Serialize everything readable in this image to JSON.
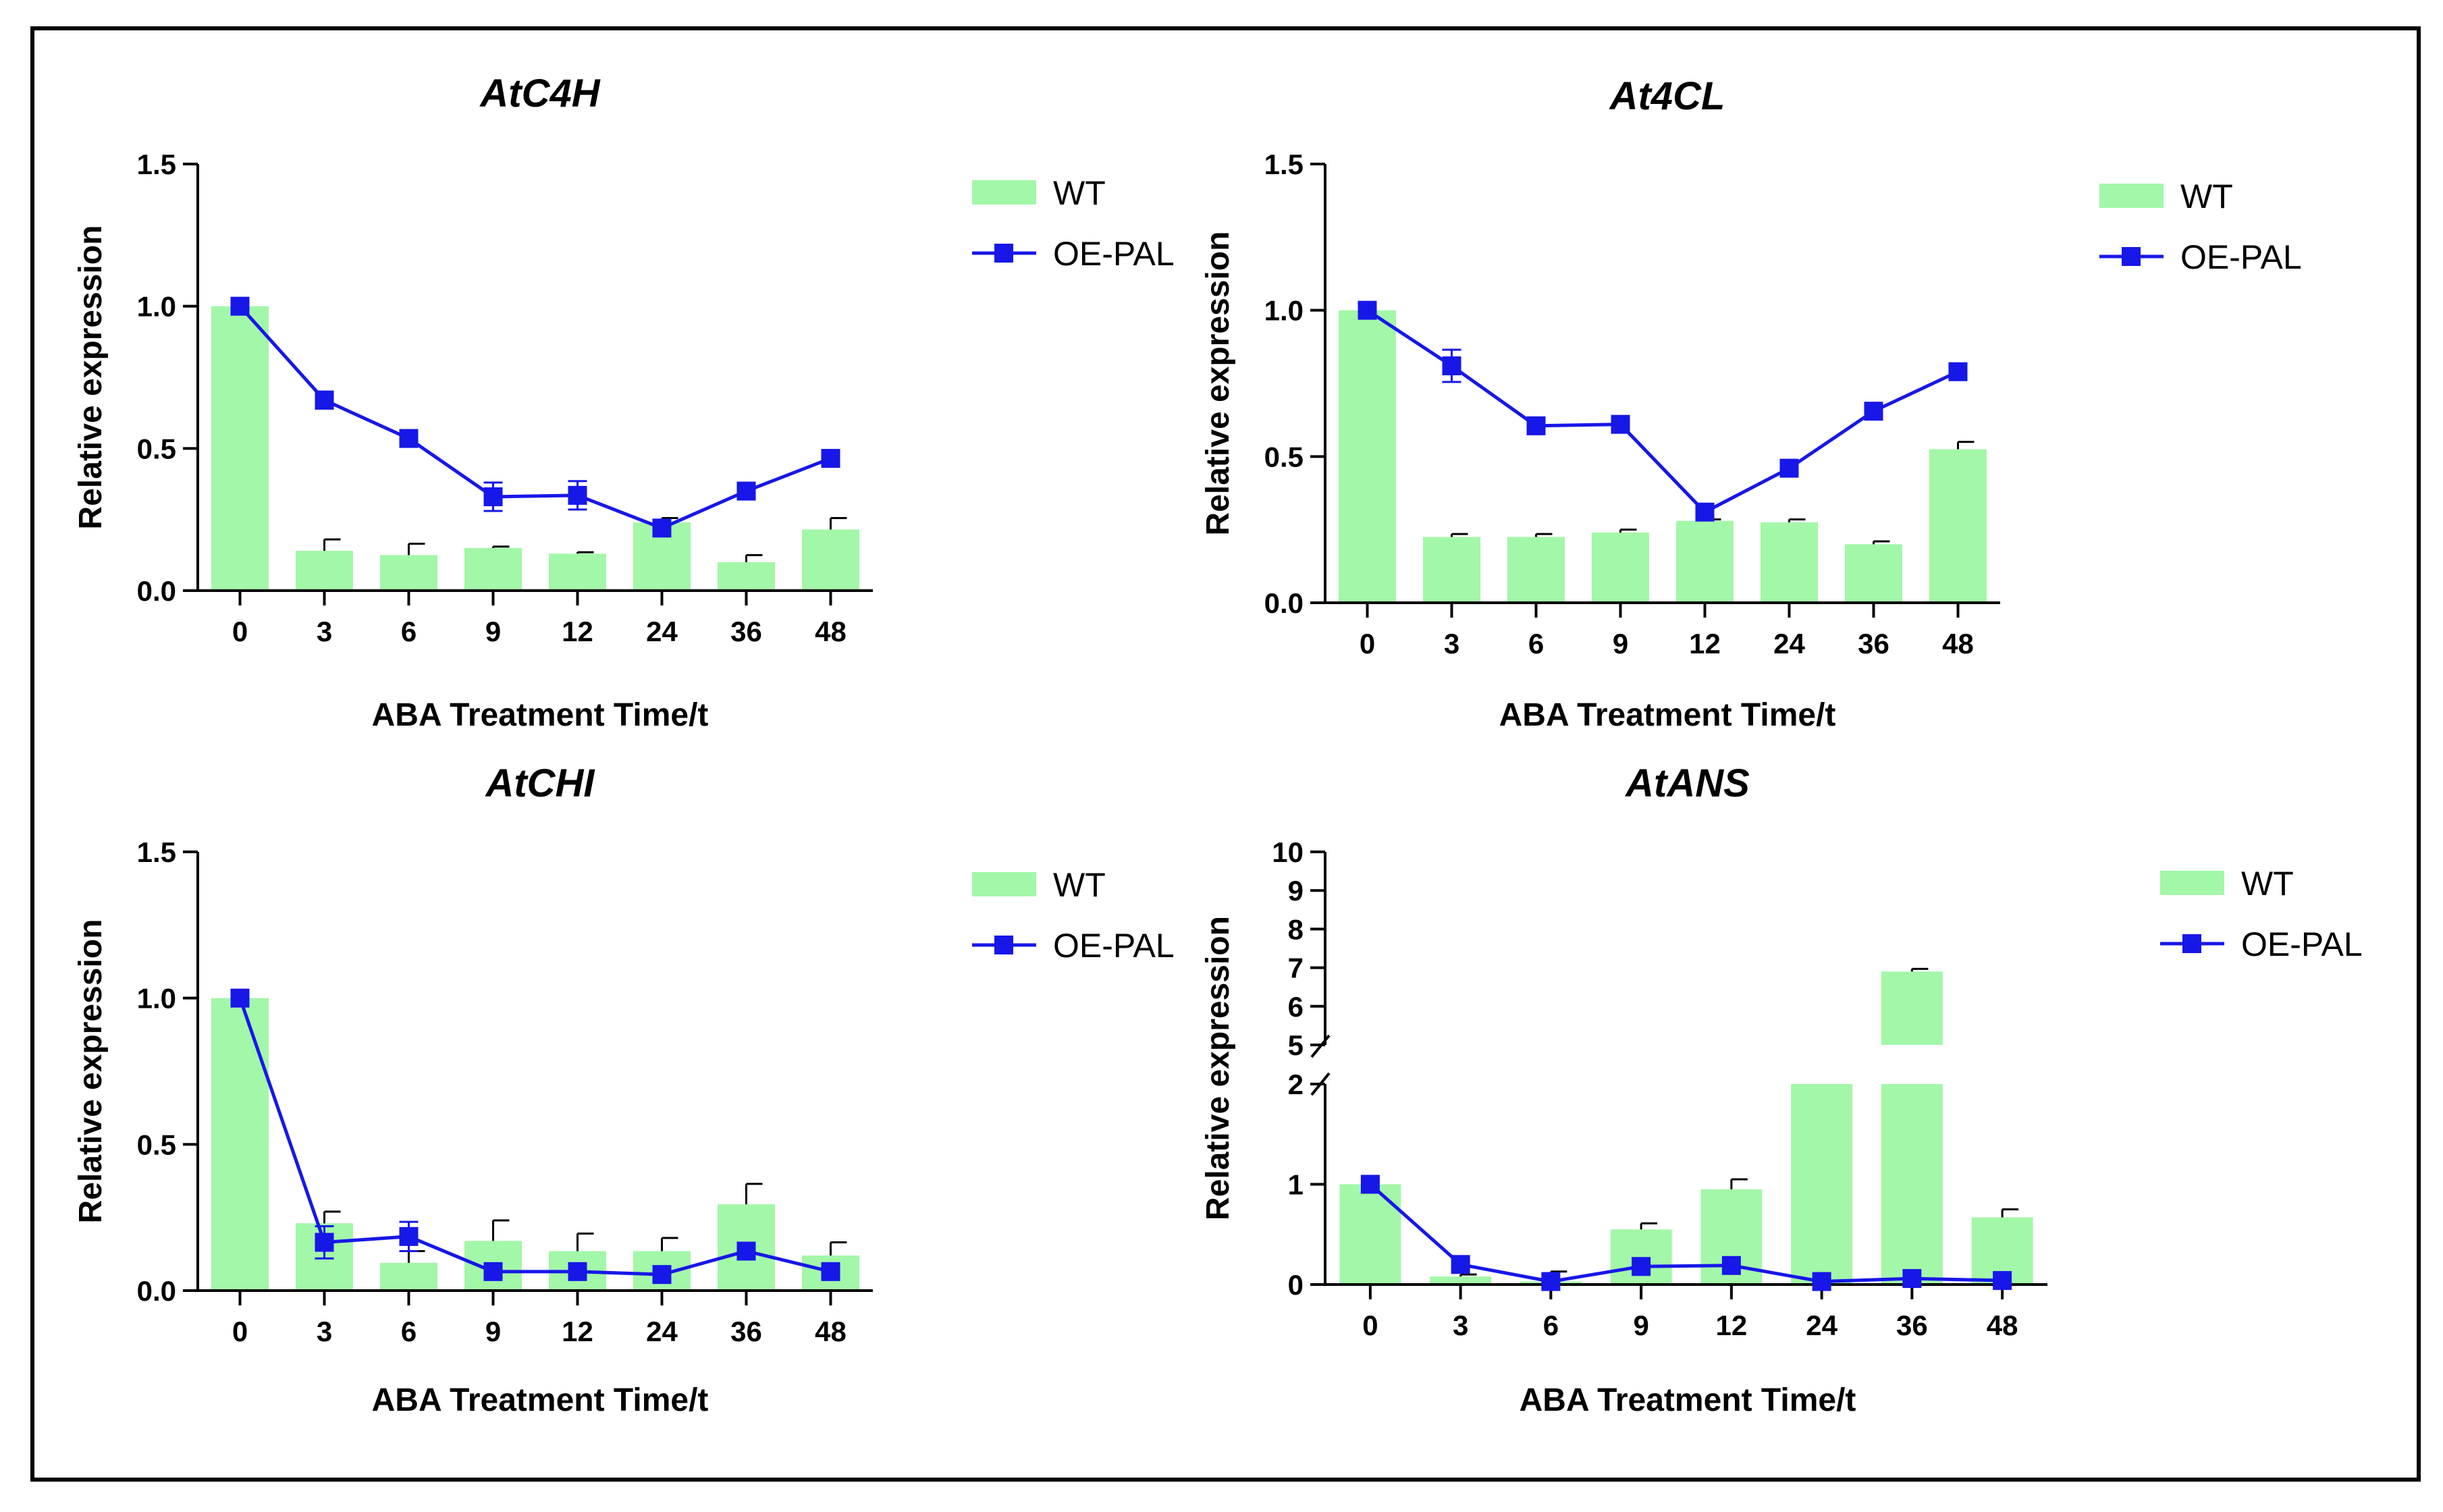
{
  "colors": {
    "wt_bar": "#a3f7a8",
    "oe_line": "#1717e8",
    "axis": "#000000",
    "frame": "#000000"
  },
  "legend": {
    "wt": "WT",
    "oe": "OE-PAL"
  },
  "chart_data": [
    {
      "type": "bar",
      "title": "AtC4H",
      "xlabel": "ABA Treatment Time/t",
      "ylabel": "Relative expression",
      "categories": [
        "0",
        "3",
        "6",
        "9",
        "12",
        "24",
        "36",
        "48"
      ],
      "ylim": [
        0,
        1.5
      ],
      "yticks": [
        "0.0",
        "0.5",
        "1.0",
        "1.5"
      ],
      "legend_position": "top-right",
      "series": [
        {
          "name": "WT",
          "kind": "bar",
          "values": [
            1.0,
            0.14,
            0.125,
            0.15,
            0.13,
            0.24,
            0.1,
            0.215
          ],
          "errors": [
            0,
            0.04,
            0.04,
            0.005,
            0.005,
            0.015,
            0.025,
            0.04
          ]
        },
        {
          "name": "OE-PAL",
          "kind": "line",
          "values": [
            1.0,
            0.67,
            0.535,
            0.33,
            0.335,
            0.22,
            0.35,
            0.465
          ],
          "errors": [
            0.01,
            0.03,
            0.01,
            0.05,
            0.05,
            0.02,
            0.01,
            0.01
          ]
        }
      ]
    },
    {
      "type": "bar",
      "title": "At4CL",
      "xlabel": "ABA Treatment Time/t",
      "ylabel": "Relative expression",
      "categories": [
        "0",
        "3",
        "6",
        "9",
        "12",
        "24",
        "36",
        "48"
      ],
      "ylim": [
        0,
        1.5
      ],
      "yticks": [
        "0.0",
        "0.5",
        "1.0",
        "1.5"
      ],
      "legend_position": "top-right",
      "series": [
        {
          "name": "WT",
          "kind": "bar",
          "values": [
            1.0,
            0.225,
            0.225,
            0.24,
            0.28,
            0.275,
            0.2,
            0.525
          ],
          "errors": [
            0,
            0.01,
            0.01,
            0.01,
            0.005,
            0.01,
            0.01,
            0.025
          ]
        },
        {
          "name": "OE-PAL",
          "kind": "line",
          "values": [
            1.0,
            0.81,
            0.605,
            0.61,
            0.31,
            0.46,
            0.655,
            0.79
          ],
          "errors": [
            0.01,
            0.055,
            0.01,
            0.01,
            0.01,
            0.01,
            0.01,
            0.01
          ]
        }
      ]
    },
    {
      "type": "bar",
      "title": "AtCHI",
      "xlabel": "ABA Treatment Time/t",
      "ylabel": "Relative expression",
      "categories": [
        "0",
        "3",
        "6",
        "9",
        "12",
        "24",
        "36",
        "48"
      ],
      "ylim": [
        0,
        1.5
      ],
      "yticks": [
        "0.0",
        "0.5",
        "1.0",
        "1.5"
      ],
      "legend_position": "top-right",
      "series": [
        {
          "name": "WT",
          "kind": "bar",
          "values": [
            1.0,
            0.23,
            0.095,
            0.17,
            0.135,
            0.135,
            0.295,
            0.12
          ],
          "errors": [
            0,
            0.04,
            0.04,
            0.07,
            0.06,
            0.045,
            0.07,
            0.045
          ]
        },
        {
          "name": "OE-PAL",
          "kind": "line",
          "values": [
            1.0,
            0.165,
            0.185,
            0.065,
            0.065,
            0.055,
            0.135,
            0.065
          ],
          "errors": [
            0.01,
            0.055,
            0.05,
            0.01,
            0.01,
            0.01,
            0.01,
            0.01
          ]
        }
      ]
    },
    {
      "type": "bar",
      "title": "AtANS",
      "xlabel": "ABA Treatment Time/t",
      "ylabel": "Relative expression",
      "categories": [
        "0",
        "3",
        "6",
        "9",
        "12",
        "24",
        "36",
        "48"
      ],
      "ylim": [
        0,
        10
      ],
      "axis_break": [
        2,
        5
      ],
      "yticks": [
        "0",
        "1",
        "2",
        "5",
        "6",
        "7",
        "8",
        "9",
        "10"
      ],
      "legend_position": "top-right",
      "series": [
        {
          "name": "WT",
          "kind": "bar",
          "values": [
            1.0,
            0.08,
            0.03,
            0.55,
            0.95,
            2.0,
            6.9,
            0.67
          ],
          "errors": [
            0,
            0.02,
            0.1,
            0.06,
            0.1,
            0,
            0.07,
            0.08
          ]
        },
        {
          "name": "OE-PAL",
          "kind": "line",
          "values": [
            1.0,
            0.2,
            0.03,
            0.18,
            0.19,
            0.03,
            0.06,
            0.04
          ],
          "errors": [
            0.01,
            0.01,
            0.01,
            0.01,
            0.01,
            0.01,
            0.01,
            0.01
          ]
        }
      ]
    }
  ]
}
